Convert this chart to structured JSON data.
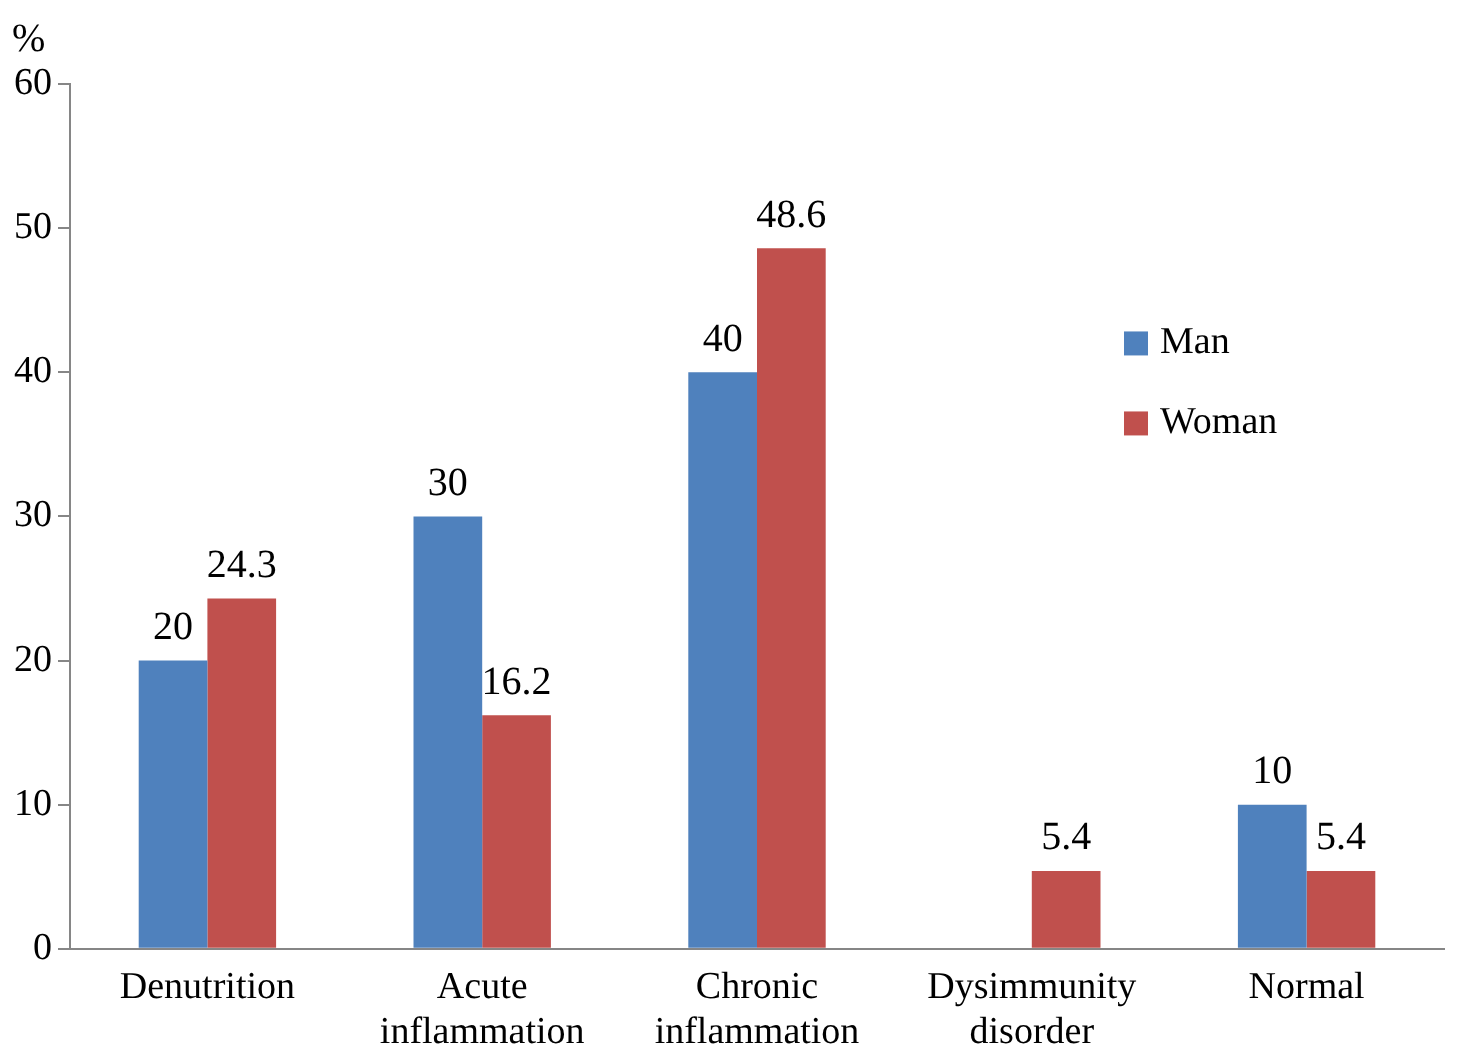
{
  "chart_data": {
    "type": "bar",
    "ylabel": "%",
    "categories": [
      "Denutrition",
      "Acute inflammation",
      "Chronic inflammation",
      "Dysimmunity disorder",
      "Normal"
    ],
    "series": [
      {
        "name": "Man",
        "color": "#4f81bd",
        "values": [
          20,
          30,
          40,
          0,
          10
        ],
        "value_labels": [
          "20",
          "30",
          "40",
          null,
          "10"
        ]
      },
      {
        "name": "Woman",
        "color": "#c0504d",
        "values": [
          24.3,
          16.2,
          48.6,
          5.4,
          5.4
        ],
        "value_labels": [
          "24.3",
          "16.2",
          "48.6",
          "5.4",
          "5.4"
        ]
      }
    ],
    "ylim": [
      0,
      60
    ],
    "yticks": [
      0,
      10,
      20,
      30,
      40,
      50,
      60
    ],
    "grid": false,
    "legend": "right"
  }
}
